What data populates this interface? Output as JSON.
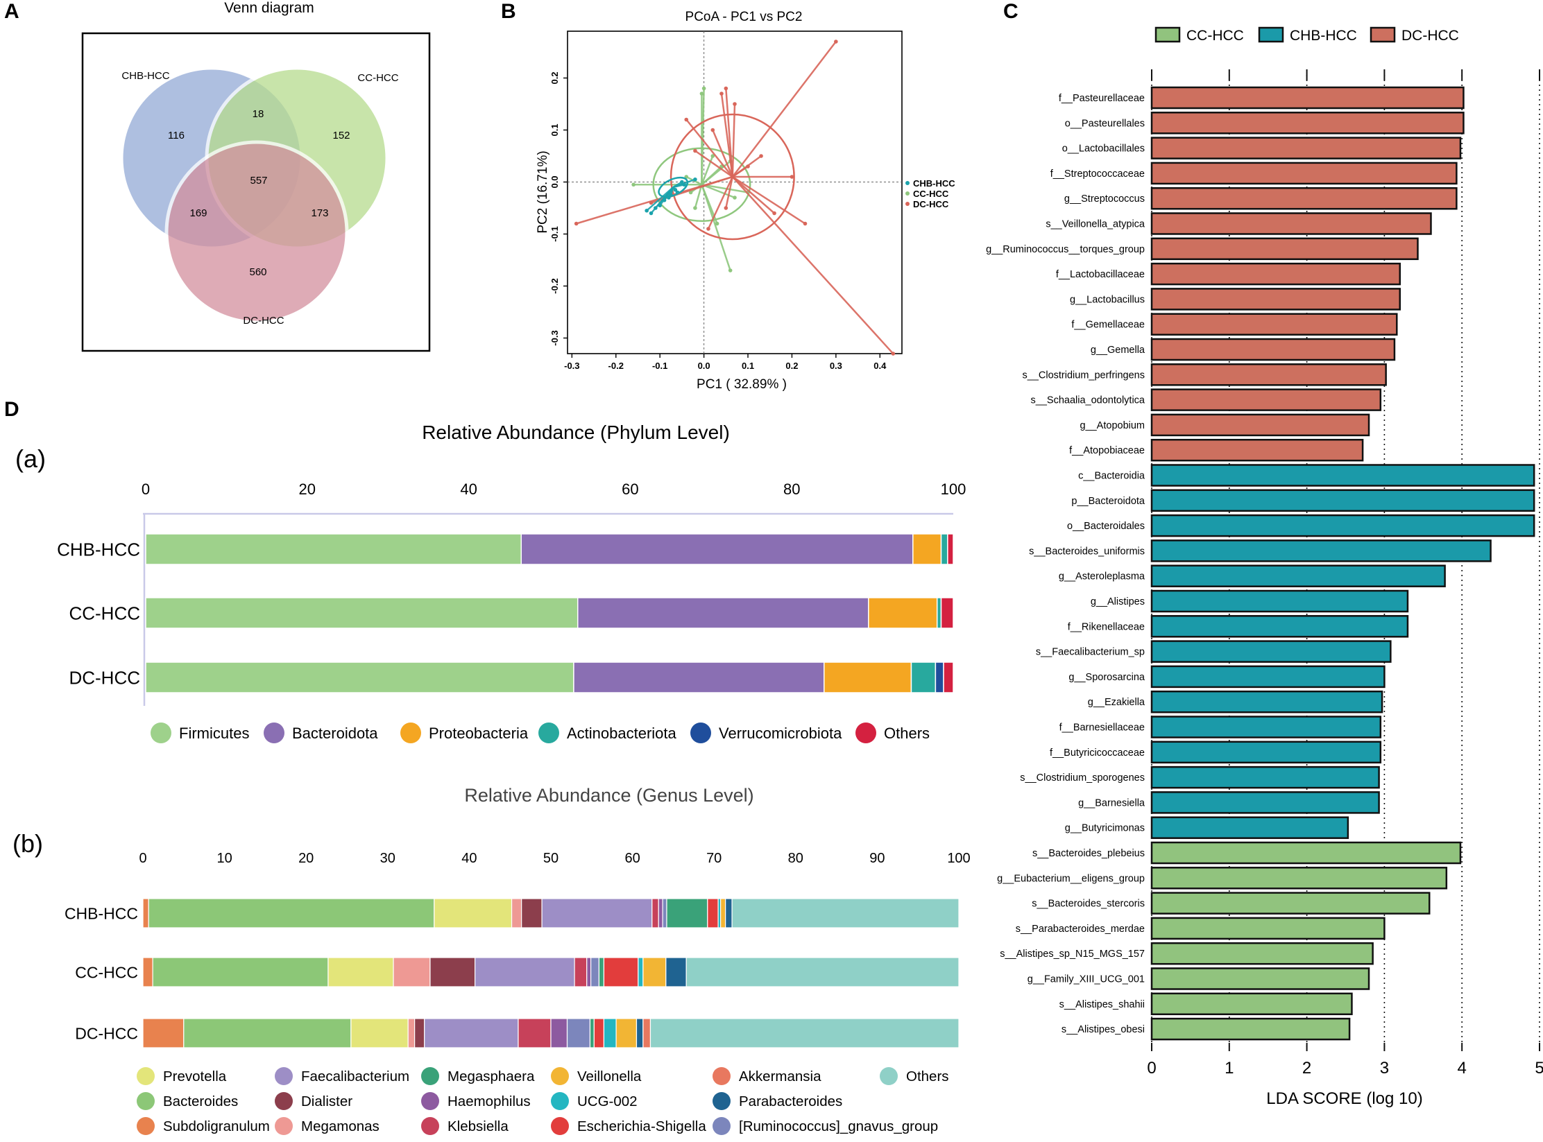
{
  "panel_letters": {
    "a": "A",
    "b": "B",
    "c": "C",
    "d": "D"
  },
  "colors": {
    "venn_chb": "#aabcdf",
    "venn_cc": "#b6db8e",
    "venn_dc": "#d3909e",
    "pcoa_chb": "#1ba3ac",
    "pcoa_cc": "#8fc77e",
    "pcoa_dc": "#d9665a",
    "lda_cc": "#91c37e",
    "lda_chb": "#1b9aa9",
    "lda_dc": "#cd705f"
  },
  "chart_data": [
    {
      "type": "venn",
      "title": "Venn diagram",
      "sets": [
        "CHB-HCC",
        "CC-HCC",
        "DC-HCC"
      ],
      "regions": {
        "chb_only": 116,
        "cc_only": 152,
        "dc_only": 560,
        "chb_cc": 18,
        "chb_dc": 169,
        "cc_dc": 173,
        "all": 557
      }
    },
    {
      "type": "scatter",
      "title": "PCoA - PC1 vs PC2",
      "xlabel": "PC1 ( 32.89% )",
      "ylabel": "PC2 (16.71%)",
      "xlim": [
        -0.31,
        0.45
      ],
      "ylim": [
        -0.33,
        0.29
      ],
      "x_ticks": [
        "-0.3",
        "-0.2",
        "-0.1",
        "0.0",
        "0.1",
        "0.2",
        "0.3",
        "0.4"
      ],
      "x_tick_values": [
        -0.3,
        -0.2,
        -0.1,
        0.0,
        0.1,
        0.2,
        0.3,
        0.4
      ],
      "y_ticks": [
        "0.2",
        "0.1",
        "0.0",
        "-0.1",
        "-0.2",
        "-0.3"
      ],
      "y_tick_values": [
        0.2,
        0.1,
        0.0,
        -0.1,
        -0.2,
        -0.3
      ],
      "legend": [
        "CHB-HCC",
        "CC-HCC",
        "DC-HCC"
      ],
      "series": [
        {
          "name": "CHB-HCC",
          "centroid": [
            -0.07,
            -0.01
          ],
          "points": [
            [
              -0.05,
              0.0
            ],
            [
              -0.045,
              -0.005
            ],
            [
              -0.12,
              -0.06
            ],
            [
              -0.1,
              -0.045
            ],
            [
              -0.08,
              -0.03
            ],
            [
              -0.06,
              -0.02
            ],
            [
              -0.11,
              -0.05
            ],
            [
              -0.09,
              -0.035
            ],
            [
              -0.02,
              0.005
            ],
            [
              -0.065,
              -0.015
            ],
            [
              -0.075,
              -0.025
            ],
            [
              -0.13,
              -0.055
            ]
          ],
          "ellipse": {
            "cx": -0.07,
            "cy": -0.01,
            "rx": 0.035,
            "ry": 0.015,
            "angle": -25
          }
        },
        {
          "name": "CC-HCC",
          "centroid": [
            -0.005,
            -0.005
          ],
          "points": [
            [
              0.0,
              0.18
            ],
            [
              -0.005,
              0.17
            ],
            [
              0.06,
              -0.17
            ],
            [
              -0.16,
              -0.005
            ],
            [
              0.02,
              0.05
            ],
            [
              -0.03,
              -0.02
            ],
            [
              0.04,
              0.03
            ],
            [
              0.07,
              -0.03
            ],
            [
              -0.04,
              0.01
            ],
            [
              0.03,
              -0.08
            ],
            [
              0.1,
              -0.02
            ],
            [
              0.06,
              0.04
            ],
            [
              -0.02,
              -0.05
            ]
          ],
          "ellipse": {
            "cx": -0.005,
            "cy": -0.005,
            "rx": 0.11,
            "ry": 0.07,
            "angle": 0
          }
        },
        {
          "name": "DC-HCC",
          "centroid": [
            0.065,
            0.01
          ],
          "points": [
            [
              0.3,
              0.27
            ],
            [
              0.43,
              -0.33
            ],
            [
              -0.29,
              -0.08
            ],
            [
              0.2,
              0.01
            ],
            [
              0.23,
              -0.08
            ],
            [
              0.16,
              -0.06
            ],
            [
              0.05,
              0.18
            ],
            [
              0.04,
              0.17
            ],
            [
              0.07,
              0.15
            ],
            [
              -0.04,
              0.12
            ],
            [
              -0.12,
              -0.04
            ],
            [
              0.01,
              -0.09
            ],
            [
              0.1,
              0.03
            ],
            [
              0.02,
              0.1
            ],
            [
              0.13,
              0.05
            ],
            [
              -0.02,
              0.06
            ],
            [
              0.05,
              -0.05
            ]
          ],
          "ellipse": {
            "cx": 0.065,
            "cy": 0.01,
            "rx": 0.14,
            "ry": 0.12,
            "angle": 0
          }
        }
      ]
    },
    {
      "type": "bar",
      "orientation": "horizontal",
      "xlabel": "LDA SCORE (log 10)",
      "xlim": [
        0,
        5
      ],
      "x_ticks": [
        "0",
        "1",
        "2",
        "3",
        "4",
        "5"
      ],
      "legend": [
        "CC-HCC",
        "CHB-HCC",
        "DC-HCC"
      ],
      "bars": [
        {
          "label": "f__Pasteurellaceae",
          "value": 4.02,
          "group": "DC-HCC"
        },
        {
          "label": "o__Pasteurellales",
          "value": 4.02,
          "group": "DC-HCC"
        },
        {
          "label": "o__Lactobacillales",
          "value": 3.98,
          "group": "DC-HCC"
        },
        {
          "label": "f__Streptococcaceae",
          "value": 3.93,
          "group": "DC-HCC"
        },
        {
          "label": "g__Streptococcus",
          "value": 3.93,
          "group": "DC-HCC"
        },
        {
          "label": "s__Veillonella_atypica",
          "value": 3.6,
          "group": "DC-HCC"
        },
        {
          "label": "g__Ruminococcus__torques_group",
          "value": 3.43,
          "group": "DC-HCC"
        },
        {
          "label": "f__Lactobacillaceae",
          "value": 3.2,
          "group": "DC-HCC"
        },
        {
          "label": "g__Lactobacillus",
          "value": 3.2,
          "group": "DC-HCC"
        },
        {
          "label": "f__Gemellaceae",
          "value": 3.16,
          "group": "DC-HCC"
        },
        {
          "label": "g__Gemella",
          "value": 3.13,
          "group": "DC-HCC"
        },
        {
          "label": "s__Clostridium_perfringens",
          "value": 3.02,
          "group": "DC-HCC"
        },
        {
          "label": "s__Schaalia_odontolytica",
          "value": 2.95,
          "group": "DC-HCC"
        },
        {
          "label": "g__Atopobium",
          "value": 2.8,
          "group": "DC-HCC"
        },
        {
          "label": "f__Atopobiaceae",
          "value": 2.72,
          "group": "DC-HCC"
        },
        {
          "label": "c__Bacteroidia",
          "value": 4.93,
          "group": "CHB-HCC"
        },
        {
          "label": "p__Bacteroidota",
          "value": 4.93,
          "group": "CHB-HCC"
        },
        {
          "label": "o__Bacteroidales",
          "value": 4.93,
          "group": "CHB-HCC"
        },
        {
          "label": "s__Bacteroides_uniformis",
          "value": 4.37,
          "group": "CHB-HCC"
        },
        {
          "label": "g__Asteroleplasma",
          "value": 3.78,
          "group": "CHB-HCC"
        },
        {
          "label": "g__Alistipes",
          "value": 3.3,
          "group": "CHB-HCC"
        },
        {
          "label": "f__Rikenellaceae",
          "value": 3.3,
          "group": "CHB-HCC"
        },
        {
          "label": "s__Faecalibacterium_sp",
          "value": 3.08,
          "group": "CHB-HCC"
        },
        {
          "label": "g__Sporosarcina",
          "value": 3.0,
          "group": "CHB-HCC"
        },
        {
          "label": "g__Ezakiella",
          "value": 2.97,
          "group": "CHB-HCC"
        },
        {
          "label": "f__Barnesiellaceae",
          "value": 2.95,
          "group": "CHB-HCC"
        },
        {
          "label": "f__Butyricicoccaceae",
          "value": 2.95,
          "group": "CHB-HCC"
        },
        {
          "label": "s__Clostridium_sporogenes",
          "value": 2.93,
          "group": "CHB-HCC"
        },
        {
          "label": "g__Barnesiella",
          "value": 2.93,
          "group": "CHB-HCC"
        },
        {
          "label": "g__Butyricimonas",
          "value": 2.53,
          "group": "CHB-HCC"
        },
        {
          "label": "s__Bacteroides_plebeius",
          "value": 3.98,
          "group": "CC-HCC"
        },
        {
          "label": "g__Eubacterium__eligens_group",
          "value": 3.8,
          "group": "CC-HCC"
        },
        {
          "label": "s__Bacteroides_stercoris",
          "value": 3.58,
          "group": "CC-HCC"
        },
        {
          "label": "s__Parabacteroides_merdae",
          "value": 3.0,
          "group": "CC-HCC"
        },
        {
          "label": "s__Alistipes_sp_N15_MGS_157",
          "value": 2.85,
          "group": "CC-HCC"
        },
        {
          "label": "g__Family_XIII_UCG_001",
          "value": 2.8,
          "group": "CC-HCC"
        },
        {
          "label": "s__Alistipes_shahii",
          "value": 2.58,
          "group": "CC-HCC"
        },
        {
          "label": "s__Alistipes_obesi",
          "value": 2.55,
          "group": "CC-HCC"
        }
      ]
    },
    {
      "type": "bar",
      "orientation": "horizontal",
      "stacked": true,
      "sublabel": "(a)",
      "title": "Relative  Abundance  (Phylum Level)",
      "xlim": [
        0,
        100
      ],
      "x_ticks": [
        "0",
        "20",
        "40",
        "60",
        "80",
        "100"
      ],
      "x_tick_values": [
        0,
        20,
        40,
        60,
        80,
        100
      ],
      "categories": [
        "CHB-HCC",
        "CC-HCC",
        "DC-HCC"
      ],
      "series": [
        {
          "name": "Firmicutes",
          "color": "#9ed18b",
          "values": [
            46.5,
            53.5,
            53.0
          ]
        },
        {
          "name": "Bacteroidota",
          "color": "#8a6fb3",
          "values": [
            48.5,
            36.0,
            31.0
          ]
        },
        {
          "name": "Proteobacteria",
          "color": "#f4a622",
          "values": [
            3.5,
            8.5,
            10.8
          ]
        },
        {
          "name": "Actinobacteriota",
          "color": "#28a99e",
          "values": [
            0.8,
            0.5,
            3.0
          ]
        },
        {
          "name": "Verrucomicrobiota",
          "color": "#1f4e9c",
          "values": [
            0.0,
            0.0,
            1.0
          ]
        },
        {
          "name": "Others",
          "color": "#d42140",
          "values": [
            0.7,
            1.5,
            1.2
          ]
        }
      ]
    },
    {
      "type": "bar",
      "orientation": "horizontal",
      "stacked": true,
      "sublabel": "(b)",
      "title": "Relative Abundance (Genus Level)",
      "xlim": [
        0,
        100
      ],
      "x_ticks": [
        "0",
        "10",
        "20",
        "30",
        "40",
        "50",
        "60",
        "70",
        "80",
        "90",
        "100"
      ],
      "x_tick_values": [
        0,
        10,
        20,
        30,
        40,
        50,
        60,
        70,
        80,
        90,
        100
      ],
      "categories": [
        "CHB-HCC",
        "CC-HCC",
        "DC-HCC"
      ],
      "series": [
        {
          "name": "Subdoligranulum",
          "color": "#e8824e",
          "values": [
            0.7,
            1.2,
            5.0
          ]
        },
        {
          "name": "Bacteroides",
          "color": "#8cc777",
          "values": [
            35.0,
            21.5,
            20.5
          ]
        },
        {
          "name": "Prevotella",
          "color": "#e3e57a",
          "values": [
            9.5,
            8.0,
            7.0
          ]
        },
        {
          "name": "Megamonas",
          "color": "#ee9994",
          "values": [
            1.2,
            4.5,
            0.8
          ]
        },
        {
          "name": "Dialister",
          "color": "#8c3e4c",
          "values": [
            2.5,
            5.5,
            1.2
          ]
        },
        {
          "name": "Faecalibacterium",
          "color": "#9d8ec6",
          "values": [
            13.5,
            12.2,
            11.5
          ]
        },
        {
          "name": "Klebsiella",
          "color": "#c7415a",
          "values": [
            0.8,
            1.5,
            4.0
          ]
        },
        {
          "name": "Haemophilus",
          "color": "#8d5aa0",
          "values": [
            0.5,
            0.5,
            2.0
          ]
        },
        {
          "name": "[Ruminococcus]_gnavus_group",
          "color": "#7c86bc",
          "values": [
            0.5,
            1.0,
            2.8
          ]
        },
        {
          "name": "Megasphaera",
          "color": "#3aa279",
          "values": [
            5.0,
            0.6,
            0.5
          ]
        },
        {
          "name": "Escherichia-Shigella",
          "color": "#e23d3c",
          "values": [
            1.3,
            4.2,
            1.2
          ]
        },
        {
          "name": "UCG-002",
          "color": "#24b6c1",
          "values": [
            0.3,
            0.6,
            1.5
          ]
        },
        {
          "name": "Veillonella",
          "color": "#f2b534",
          "values": [
            0.6,
            2.8,
            2.5
          ]
        },
        {
          "name": "Parabacteroides",
          "color": "#1f6391",
          "values": [
            0.8,
            2.5,
            0.8
          ]
        },
        {
          "name": "Akkermansia",
          "color": "#e8785f",
          "values": [
            0.0,
            0.0,
            0.9
          ]
        },
        {
          "name": "Others",
          "color": "#8fd0c7",
          "values": [
            27.8,
            33.4,
            37.8
          ]
        }
      ],
      "legend_order": [
        [
          "Prevotella",
          "Bacteroides",
          "Subdoligranulum"
        ],
        [
          "Faecalibacterium",
          "Dialister",
          "Megamonas"
        ],
        [
          "Megasphaera",
          "Haemophilus",
          "Klebsiella"
        ],
        [
          "Veillonella",
          "UCG-002",
          "Escherichia-Shigella"
        ],
        [
          "Akkermansia",
          "Parabacteroides",
          "[Ruminococcus]_gnavus_group"
        ],
        [
          "Others"
        ]
      ]
    }
  ]
}
